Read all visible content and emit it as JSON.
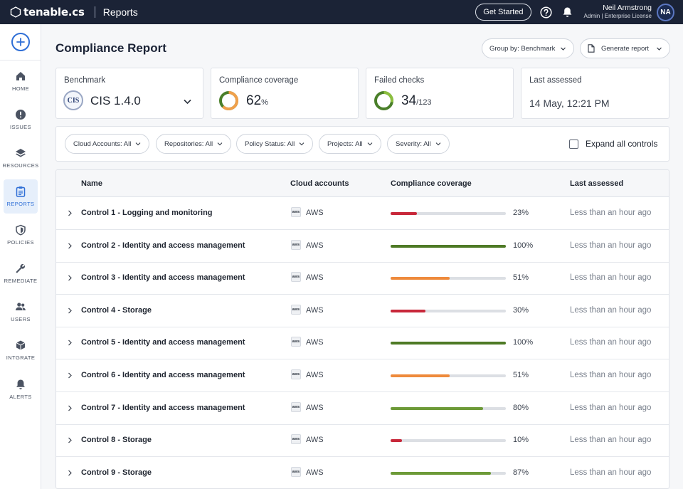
{
  "topbar": {
    "logo_text": "tenable.cs",
    "app_title": "Reports",
    "get_started_label": "Get Started",
    "user_name": "Neil Armstrong",
    "user_role": "Admin | Enterprise License",
    "user_initials": "NA"
  },
  "sidebar": {
    "items": [
      {
        "label": "HOME",
        "icon": "home-icon"
      },
      {
        "label": "ISSUES",
        "icon": "alert-circle-icon"
      },
      {
        "label": "RESOURCES",
        "icon": "layers-icon"
      },
      {
        "label": "REPORTS",
        "icon": "clipboard-icon",
        "active": true
      },
      {
        "label": "POLICIES",
        "icon": "shield-icon"
      },
      {
        "label": "REMEDIATE",
        "icon": "wrench-icon"
      },
      {
        "label": "USERS",
        "icon": "users-icon"
      },
      {
        "label": "INTGRATE",
        "icon": "cube-icon"
      },
      {
        "label": "ALERTS",
        "icon": "bell-icon"
      }
    ]
  },
  "page": {
    "title": "Compliance Report",
    "group_by_label": "Group by: Benchmark",
    "generate_report_label": "Generate report"
  },
  "cards": {
    "benchmark": {
      "label": "Benchmark",
      "logo_text": "CIS",
      "value": "CIS 1.4.0"
    },
    "coverage": {
      "label": "Compliance coverage",
      "value": "62",
      "unit": "%",
      "fraction": 0.62
    },
    "failed": {
      "label": "Failed checks",
      "value": "34",
      "total": "/123",
      "fraction": 0.276
    },
    "last_assessed": {
      "label": "Last assessed",
      "value": "14 May, 12:21 PM"
    }
  },
  "filters": {
    "chips": [
      "Cloud Accounts: All",
      "Repositories: All",
      "Policy Status: All",
      "Projects: All",
      "Severity: All"
    ],
    "expand_label": "Expand all controls"
  },
  "table": {
    "columns": [
      "Name",
      "Cloud accounts",
      "Compliance coverage",
      "Last assessed"
    ],
    "rows": [
      {
        "name": "Control 1 - Logging and monitoring",
        "account": "AWS",
        "coverage": 23,
        "pct": "23%",
        "assessed": "Less than an hour ago"
      },
      {
        "name": "Control 2 - Identity and access management",
        "account": "AWS",
        "coverage": 100,
        "pct": "100%",
        "assessed": "Less than an hour ago"
      },
      {
        "name": "Control 3 - Identity and access management",
        "account": "AWS",
        "coverage": 51,
        "pct": "51%",
        "assessed": "Less than an hour ago"
      },
      {
        "name": "Control 4 - Storage",
        "account": "AWS",
        "coverage": 30,
        "pct": "30%",
        "assessed": "Less than an hour ago"
      },
      {
        "name": "Control 5 - Identity and access management",
        "account": "AWS",
        "coverage": 100,
        "pct": "100%",
        "assessed": "Less than an hour ago"
      },
      {
        "name": "Control 6 - Identity and access management",
        "account": "AWS",
        "coverage": 51,
        "pct": "51%",
        "assessed": "Less than an hour ago"
      },
      {
        "name": "Control 7 - Identity and access management",
        "account": "AWS",
        "coverage": 80,
        "pct": "80%",
        "assessed": "Less than an hour ago"
      },
      {
        "name": "Control 8 - Storage",
        "account": "AWS",
        "coverage": 10,
        "pct": "10%",
        "assessed": "Less than an hour ago"
      },
      {
        "name": "Control 9 - Storage",
        "account": "AWS",
        "coverage": 87,
        "pct": "87%",
        "assessed": "Less than an hour ago"
      }
    ],
    "aws_icon_text": "aws"
  },
  "colors": {
    "topbar": "#1b2336",
    "accent": "#2f6fd6",
    "low": "#c8283a",
    "medium": "#ee8a3c",
    "high": "#4e7a25",
    "good": "#6d9a38",
    "donut_coverage": "#f0a04b",
    "donut_failed": "#8cbf3f",
    "donut_track": "#4a7f2a",
    "track": "#dcdfe4"
  }
}
